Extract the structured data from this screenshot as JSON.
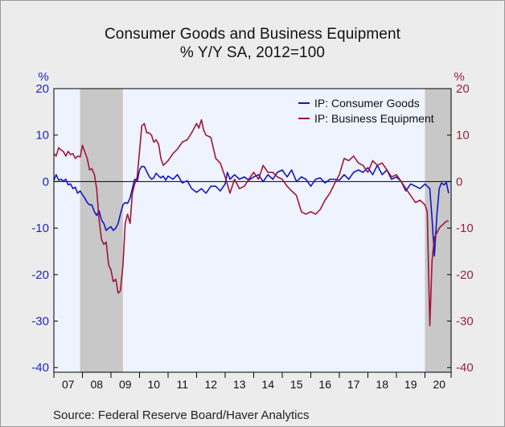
{
  "title": "Consumer Goods and Business Equipment",
  "subtitle": "% Y/Y   SA, 2012=100",
  "source": "Source:  Federal Reserve Board/Haver Analytics",
  "chart_data": {
    "type": "line",
    "unit_left": "%",
    "unit_right": "%",
    "ylim": [
      -41,
      20
    ],
    "xlim": [
      2007.0,
      2020.917
    ],
    "y_ticks": [
      20,
      10,
      0,
      -10,
      -20,
      -30,
      -40
    ],
    "y_tick_labels": [
      "20",
      "10",
      "0",
      "-10",
      "-20",
      "-30",
      "-40"
    ],
    "x_tick_labels": [
      "07",
      "08",
      "09",
      "10",
      "11",
      "12",
      "13",
      "14",
      "15",
      "16",
      "17",
      "18",
      "19",
      "20"
    ],
    "grid": false,
    "zero_line": true,
    "legend_position": "top-right",
    "recessions": [
      [
        2007.917,
        2009.417
      ],
      [
        2020.0,
        2020.917
      ]
    ],
    "colors": {
      "consumer": "#1414c8",
      "business": "#a01535",
      "recession": "#c8c8c8",
      "plot_bg": "#eef3ff"
    },
    "series": [
      {
        "name": "IP: Consumer Goods",
        "color": "#1414c8",
        "x": [
          2007.0,
          2007.08,
          2007.17,
          2007.25,
          2007.33,
          2007.42,
          2007.5,
          2007.58,
          2007.67,
          2007.75,
          2007.83,
          2007.92,
          2008.0,
          2008.08,
          2008.17,
          2008.25,
          2008.33,
          2008.42,
          2008.5,
          2008.58,
          2008.67,
          2008.75,
          2008.83,
          2008.92,
          2009.0,
          2009.08,
          2009.17,
          2009.25,
          2009.33,
          2009.42,
          2009.5,
          2009.58,
          2009.67,
          2009.75,
          2009.83,
          2009.92,
          2010.0,
          2010.08,
          2010.17,
          2010.25,
          2010.33,
          2010.42,
          2010.5,
          2010.58,
          2010.67,
          2010.75,
          2010.83,
          2010.92,
          2011.0,
          2011.17,
          2011.33,
          2011.5,
          2011.67,
          2011.83,
          2012.0,
          2012.17,
          2012.33,
          2012.5,
          2012.67,
          2012.83,
          2013.0,
          2013.08,
          2013.17,
          2013.33,
          2013.5,
          2013.67,
          2013.83,
          2014.0,
          2014.17,
          2014.33,
          2014.5,
          2014.67,
          2014.83,
          2015.0,
          2015.17,
          2015.33,
          2015.5,
          2015.67,
          2015.83,
          2016.0,
          2016.17,
          2016.33,
          2016.5,
          2016.67,
          2016.83,
          2017.0,
          2017.17,
          2017.33,
          2017.5,
          2017.67,
          2017.83,
          2018.0,
          2018.17,
          2018.33,
          2018.5,
          2018.67,
          2018.83,
          2019.0,
          2019.17,
          2019.33,
          2019.5,
          2019.67,
          2019.83,
          2020.0,
          2020.08,
          2020.17,
          2020.25,
          2020.33,
          2020.42,
          2020.5,
          2020.58,
          2020.67,
          2020.75,
          2020.83
        ],
        "values": [
          0.3,
          1.5,
          0.3,
          0.5,
          0.1,
          0.5,
          -0.7,
          -0.5,
          -1.5,
          -1.2,
          -2.5,
          -2.0,
          -2.8,
          -3.5,
          -4.5,
          -5.0,
          -5.0,
          -6.5,
          -7.3,
          -6.2,
          -8.3,
          -9.0,
          -10.5,
          -10.0,
          -9.7,
          -10.5,
          -10.0,
          -9.0,
          -7.0,
          -5.0,
          -4.5,
          -4.7,
          -3.5,
          -1.5,
          0.5,
          0.0,
          2.5,
          3.3,
          3.2,
          2.2,
          1.2,
          0.5,
          0.8,
          1.8,
          1.2,
          0.8,
          1.2,
          0.3,
          1.2,
          0.5,
          1.5,
          -0.3,
          0.2,
          -1.5,
          -2.3,
          -1.5,
          -2.5,
          -1.0,
          -1.0,
          -2.0,
          -0.5,
          2.0,
          0.5,
          1.5,
          0.5,
          1.0,
          0.3,
          1.0,
          1.5,
          0.0,
          1.5,
          0.5,
          2.0,
          2.5,
          1.0,
          2.5,
          0.0,
          1.0,
          0.5,
          -1.0,
          0.5,
          0.8,
          -0.3,
          0.5,
          0.5,
          0.3,
          1.5,
          0.5,
          2.0,
          2.5,
          2.0,
          3.0,
          1.5,
          3.5,
          1.5,
          2.5,
          0.5,
          1.0,
          0.0,
          -2.0,
          -0.5,
          -1.0,
          -1.5,
          -0.5,
          -1.0,
          -1.5,
          -8.0,
          -16.0,
          -7.0,
          -1.5,
          -0.3,
          -0.7,
          -0.2,
          -2.5
        ]
      },
      {
        "name": "IP: Business Equipment",
        "color": "#a01535",
        "x": [
          2007.0,
          2007.08,
          2007.17,
          2007.25,
          2007.33,
          2007.42,
          2007.5,
          2007.58,
          2007.67,
          2007.75,
          2007.83,
          2007.92,
          2008.0,
          2008.08,
          2008.17,
          2008.25,
          2008.33,
          2008.42,
          2008.5,
          2008.58,
          2008.67,
          2008.75,
          2008.83,
          2008.92,
          2009.0,
          2009.08,
          2009.17,
          2009.25,
          2009.33,
          2009.42,
          2009.5,
          2009.58,
          2009.67,
          2009.75,
          2009.83,
          2009.92,
          2010.0,
          2010.08,
          2010.17,
          2010.25,
          2010.33,
          2010.42,
          2010.5,
          2010.58,
          2010.67,
          2010.75,
          2010.83,
          2010.92,
          2011.0,
          2011.17,
          2011.33,
          2011.5,
          2011.67,
          2011.83,
          2012.0,
          2012.08,
          2012.17,
          2012.25,
          2012.33,
          2012.5,
          2012.67,
          2012.83,
          2013.0,
          2013.17,
          2013.33,
          2013.5,
          2013.67,
          2013.83,
          2014.0,
          2014.17,
          2014.33,
          2014.5,
          2014.67,
          2014.83,
          2015.0,
          2015.17,
          2015.33,
          2015.5,
          2015.67,
          2015.83,
          2016.0,
          2016.17,
          2016.33,
          2016.5,
          2016.67,
          2016.83,
          2017.0,
          2017.17,
          2017.33,
          2017.5,
          2017.67,
          2017.83,
          2018.0,
          2018.17,
          2018.33,
          2018.5,
          2018.67,
          2018.83,
          2019.0,
          2019.17,
          2019.33,
          2019.5,
          2019.67,
          2019.83,
          2020.0,
          2020.08,
          2020.17,
          2020.25,
          2020.33,
          2020.42,
          2020.5,
          2020.58,
          2020.67,
          2020.75,
          2020.83
        ],
        "values": [
          6.0,
          5.5,
          7.3,
          6.8,
          6.5,
          5.5,
          6.5,
          5.8,
          6.0,
          5.0,
          5.5,
          5.3,
          7.8,
          6.5,
          5.0,
          2.5,
          2.8,
          1.5,
          -1.5,
          -8.0,
          -12.5,
          -13.5,
          -13.0,
          -18.0,
          -19.0,
          -21.5,
          -21.0,
          -24.0,
          -23.5,
          -18.0,
          -9.0,
          -7.0,
          -9.0,
          -2.5,
          -0.5,
          1.0,
          6.5,
          12.0,
          12.5,
          10.5,
          10.5,
          10.0,
          8.5,
          9.0,
          8.0,
          5.0,
          3.5,
          4.0,
          4.5,
          6.0,
          7.0,
          8.5,
          9.0,
          10.5,
          12.5,
          11.5,
          13.3,
          11.0,
          10.0,
          9.5,
          5.0,
          4.0,
          1.0,
          -2.5,
          0.5,
          -1.5,
          -1.0,
          0.5,
          2.0,
          0.5,
          3.5,
          2.0,
          2.0,
          1.0,
          0.5,
          -1.0,
          -2.0,
          -3.0,
          -6.5,
          -7.0,
          -6.5,
          -7.0,
          -6.0,
          -4.0,
          -2.5,
          -0.5,
          1.5,
          5.0,
          4.5,
          5.5,
          4.0,
          3.5,
          2.0,
          4.5,
          3.5,
          4.0,
          2.5,
          1.0,
          1.5,
          0.0,
          -1.5,
          -3.0,
          -4.5,
          -4.0,
          -5.0,
          -6.5,
          -31.0,
          -17.0,
          -12.0,
          -11.0,
          -10.0,
          -9.5,
          -9.0,
          -8.5,
          -8.5
        ]
      }
    ]
  }
}
